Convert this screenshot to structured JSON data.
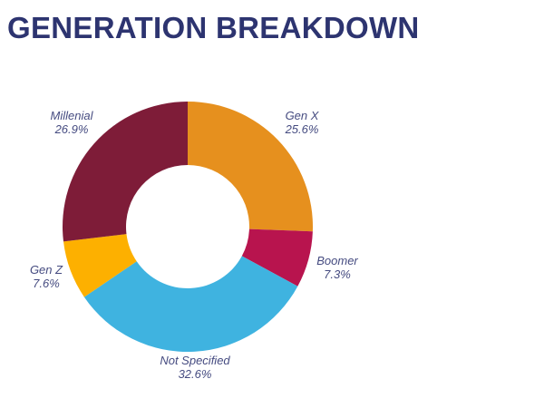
{
  "chart_data": {
    "type": "pie",
    "subtype": "donut",
    "title": "GENERATION BREAKDOWN",
    "start": "top",
    "direction": "clockwise",
    "slices": [
      {
        "label": "Gen X",
        "value": 25.6,
        "value_label": "25.6%",
        "color": "#e6901e"
      },
      {
        "label": "Boomer",
        "value": 7.3,
        "value_label": "7.3%",
        "color": "#b8144e"
      },
      {
        "label": "Not Specified",
        "value": 32.6,
        "value_label": "32.6%",
        "color": "#3fb3e0"
      },
      {
        "label": "Gen Z",
        "value": 7.6,
        "value_label": "7.6%",
        "color": "#fdb000"
      },
      {
        "label": "Millenial",
        "value": 26.9,
        "value_label": "26.9%",
        "color": "#7e1c38"
      }
    ]
  }
}
